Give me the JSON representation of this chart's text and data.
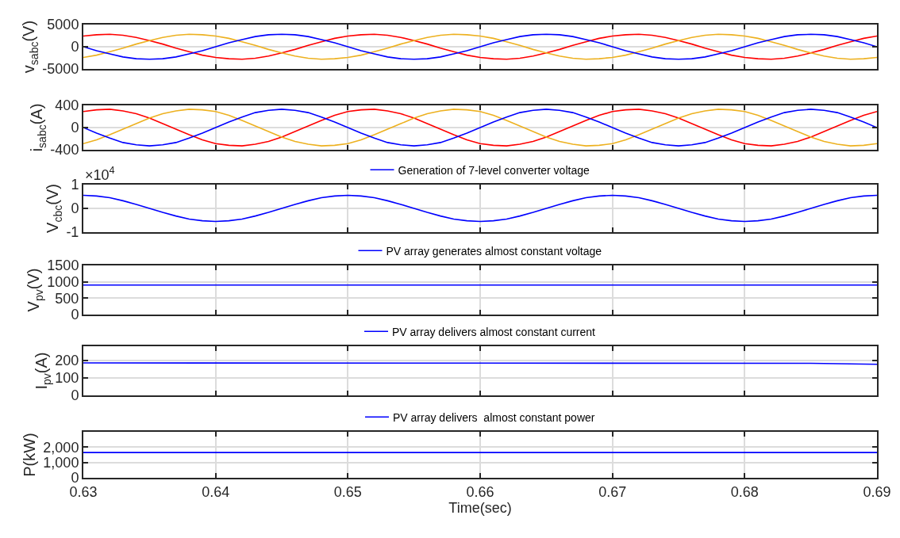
{
  "chart_data": [
    {
      "type": "line",
      "ylabel": "v$_{sabc}$(V)",
      "xlim": [
        0.63,
        0.69
      ],
      "xticks": [
        0.63,
        0.64,
        0.65,
        0.66,
        0.67,
        0.68,
        0.69
      ],
      "ylim": [
        -5000,
        5000
      ],
      "yticks": [
        -5000,
        0,
        5000
      ],
      "grid": true,
      "tick_labels": "y",
      "legend": false,
      "x": [
        0.63,
        0.631,
        0.632,
        0.633,
        0.634,
        0.635,
        0.636,
        0.637,
        0.638,
        0.639,
        0.64,
        0.641,
        0.642,
        0.643,
        0.644,
        0.645,
        0.646,
        0.647,
        0.648,
        0.649,
        0.65,
        0.651,
        0.652,
        0.653,
        0.654,
        0.655,
        0.656,
        0.657,
        0.658,
        0.659,
        0.66,
        0.661,
        0.662,
        0.663,
        0.664,
        0.665,
        0.666,
        0.667,
        0.668,
        0.669,
        0.67,
        0.671,
        0.672,
        0.673,
        0.674,
        0.675,
        0.676,
        0.677,
        0.678,
        0.679,
        0.68,
        0.681,
        0.682,
        0.683,
        0.684,
        0.685,
        0.686,
        0.687,
        0.688,
        0.689,
        0.69
      ],
      "series": [
        {
          "color": "#ff0000",
          "values": [
            2400,
            2700,
            2800,
            2600,
            2100,
            1400,
            600,
            -300,
            -1100,
            -1900,
            -2400,
            -2700,
            -2800,
            -2600,
            -2100,
            -1400,
            -600,
            300,
            1100,
            1900,
            2400,
            2700,
            2800,
            2600,
            2100,
            1400,
            600,
            -300,
            -1100,
            -1900,
            -2400,
            -2700,
            -2800,
            -2600,
            -2100,
            -1400,
            -600,
            300,
            1100,
            1900,
            2400,
            2700,
            2800,
            2600,
            2100,
            1400,
            600,
            -300,
            -1100,
            -1900,
            -2400,
            -2700,
            -2800,
            -2600,
            -2100,
            -1400,
            -600,
            300,
            1100,
            1900,
            2400
          ]
        },
        {
          "color": "#edb120",
          "values": [
            -2400,
            -1900,
            -1100,
            -300,
            600,
            1400,
            2100,
            2600,
            2800,
            2700,
            2400,
            1900,
            1100,
            300,
            -600,
            -1400,
            -2100,
            -2600,
            -2800,
            -2700,
            -2400,
            -1900,
            -1100,
            -300,
            600,
            1400,
            2100,
            2600,
            2800,
            2700,
            2400,
            1900,
            1100,
            300,
            -600,
            -1400,
            -2100,
            -2600,
            -2800,
            -2700,
            -2400,
            -1900,
            -1100,
            -300,
            600,
            1400,
            2100,
            2600,
            2800,
            2700,
            2400,
            1900,
            1100,
            300,
            -600,
            -1400,
            -2100,
            -2600,
            -2800,
            -2700,
            -2400
          ]
        },
        {
          "color": "#0000ff",
          "values": [
            0,
            -900,
            -1600,
            -2300,
            -2700,
            -2800,
            -2700,
            -2300,
            -1600,
            -900,
            0,
            900,
            1600,
            2300,
            2700,
            2800,
            2700,
            2300,
            1600,
            900,
            0,
            -900,
            -1600,
            -2300,
            -2700,
            -2800,
            -2700,
            -2300,
            -1600,
            -900,
            0,
            900,
            1600,
            2300,
            2700,
            2800,
            2700,
            2300,
            1600,
            900,
            0,
            -900,
            -1600,
            -2300,
            -2700,
            -2800,
            -2700,
            -2300,
            -1600,
            -900,
            0,
            900,
            1600,
            2300,
            2700,
            2800,
            2700,
            2300,
            1600,
            900,
            0
          ]
        }
      ]
    },
    {
      "type": "line",
      "ylabel": "i$_{sabc}$(A)",
      "xlim": [
        0.63,
        0.69
      ],
      "xticks": [
        0.63,
        0.64,
        0.65,
        0.66,
        0.67,
        0.68,
        0.69
      ],
      "ylim": [
        -400,
        400
      ],
      "yticks": [
        -400,
        0,
        400
      ],
      "grid": true,
      "tick_labels": "y",
      "legend": false,
      "x": [
        0.63,
        0.631,
        0.632,
        0.633,
        0.634,
        0.635,
        0.636,
        0.637,
        0.638,
        0.639,
        0.64,
        0.641,
        0.642,
        0.643,
        0.644,
        0.645,
        0.646,
        0.647,
        0.648,
        0.649,
        0.65,
        0.651,
        0.652,
        0.653,
        0.654,
        0.655,
        0.656,
        0.657,
        0.658,
        0.659,
        0.66,
        0.661,
        0.662,
        0.663,
        0.664,
        0.665,
        0.666,
        0.667,
        0.668,
        0.669,
        0.67,
        0.671,
        0.672,
        0.673,
        0.674,
        0.675,
        0.676,
        0.677,
        0.678,
        0.679,
        0.68,
        0.681,
        0.682,
        0.683,
        0.684,
        0.685,
        0.686,
        0.687,
        0.688,
        0.689,
        0.69
      ],
      "series": [
        {
          "color": "#ff0000",
          "values": [
            290,
            320,
            330,
            300,
            250,
            170,
            70,
            -30,
            -130,
            -220,
            -290,
            -320,
            -330,
            -300,
            -250,
            -170,
            -70,
            30,
            130,
            220,
            290,
            320,
            330,
            300,
            250,
            170,
            70,
            -30,
            -130,
            -220,
            -290,
            -320,
            -330,
            -300,
            -250,
            -170,
            -70,
            30,
            130,
            220,
            290,
            320,
            330,
            300,
            250,
            170,
            70,
            -30,
            -130,
            -220,
            -290,
            -320,
            -330,
            -300,
            -250,
            -170,
            -70,
            30,
            130,
            220,
            290
          ]
        },
        {
          "color": "#edb120",
          "values": [
            -290,
            -220,
            -130,
            -30,
            70,
            170,
            250,
            300,
            330,
            320,
            290,
            220,
            130,
            30,
            -70,
            -170,
            -250,
            -300,
            -330,
            -320,
            -290,
            -220,
            -130,
            -30,
            70,
            170,
            250,
            300,
            330,
            320,
            290,
            220,
            130,
            30,
            -70,
            -170,
            -250,
            -300,
            -330,
            -320,
            -290,
            -220,
            -130,
            -30,
            70,
            170,
            250,
            300,
            330,
            320,
            290,
            220,
            130,
            30,
            -70,
            -170,
            -250,
            -300,
            -330,
            -320,
            -290
          ]
        },
        {
          "color": "#0000ff",
          "values": [
            0,
            -100,
            -190,
            -270,
            -310,
            -330,
            -310,
            -270,
            -190,
            -100,
            0,
            100,
            190,
            270,
            310,
            330,
            310,
            270,
            190,
            100,
            0,
            -100,
            -190,
            -270,
            -310,
            -330,
            -310,
            -270,
            -190,
            -100,
            0,
            100,
            190,
            270,
            310,
            330,
            310,
            270,
            190,
            100,
            0,
            -100,
            -190,
            -270,
            -310,
            -330,
            -310,
            -270,
            -190,
            -100,
            0,
            100,
            190,
            270,
            310,
            330,
            310,
            270,
            190,
            100,
            0
          ]
        }
      ]
    },
    {
      "type": "line",
      "ylabel": "V$_{cbc}$(V)",
      "annotations": [
        "×10$^{4}$"
      ],
      "xlim": [
        0.63,
        0.69
      ],
      "xticks": [
        0.63,
        0.64,
        0.65,
        0.66,
        0.67,
        0.68,
        0.69
      ],
      "ylim": [
        -1,
        1
      ],
      "yticks": [
        -1,
        0,
        1
      ],
      "grid": true,
      "tick_labels": "y",
      "legend": "top",
      "x": [
        0.63,
        0.631,
        0.632,
        0.633,
        0.634,
        0.635,
        0.636,
        0.637,
        0.638,
        0.639,
        0.64,
        0.641,
        0.642,
        0.643,
        0.644,
        0.645,
        0.646,
        0.647,
        0.648,
        0.649,
        0.65,
        0.651,
        0.652,
        0.653,
        0.654,
        0.655,
        0.656,
        0.657,
        0.658,
        0.659,
        0.66,
        0.661,
        0.662,
        0.663,
        0.664,
        0.665,
        0.666,
        0.667,
        0.668,
        0.669,
        0.67,
        0.671,
        0.672,
        0.673,
        0.674,
        0.675,
        0.676,
        0.677,
        0.678,
        0.679,
        0.68,
        0.681,
        0.682,
        0.683,
        0.684,
        0.685,
        0.686,
        0.687,
        0.688,
        0.689,
        0.69
      ],
      "series": [
        {
          "name": "Generation of 7-level converter voltage",
          "color": "#0000ff",
          "values": [
            0.55,
            0.52,
            0.45,
            0.32,
            0.17,
            0,
            -0.17,
            -0.32,
            -0.45,
            -0.52,
            -0.55,
            -0.52,
            -0.45,
            -0.32,
            -0.17,
            0,
            0.17,
            0.32,
            0.45,
            0.52,
            0.55,
            0.52,
            0.45,
            0.32,
            0.17,
            0,
            -0.17,
            -0.32,
            -0.45,
            -0.52,
            -0.55,
            -0.52,
            -0.45,
            -0.32,
            -0.17,
            0,
            0.17,
            0.32,
            0.45,
            0.52,
            0.55,
            0.52,
            0.45,
            0.32,
            0.17,
            0,
            -0.17,
            -0.32,
            -0.45,
            -0.52,
            -0.55,
            -0.52,
            -0.45,
            -0.32,
            -0.17,
            0,
            0.17,
            0.32,
            0.45,
            0.52,
            0.55
          ]
        }
      ]
    },
    {
      "type": "line",
      "ylabel": "V$_{pv}$(V)",
      "xlim": [
        0.63,
        0.69
      ],
      "xticks": [
        0.63,
        0.64,
        0.65,
        0.66,
        0.67,
        0.68,
        0.69
      ],
      "ylim": [
        0,
        1500
      ],
      "yticks": [
        0,
        500,
        1000,
        1500
      ],
      "grid": true,
      "tick_labels": "y",
      "legend": "top",
      "x": [
        0.63,
        0.69
      ],
      "series": [
        {
          "name": "PV array generates almost constant voltage",
          "color": "#0000ff",
          "values": [
            900,
            900
          ]
        }
      ]
    },
    {
      "type": "line",
      "ylabel": "I$_{pv}$(A)",
      "xlim": [
        0.63,
        0.69
      ],
      "xticks": [
        0.63,
        0.64,
        0.65,
        0.66,
        0.67,
        0.68,
        0.69
      ],
      "ylim": [
        0,
        280
      ],
      "yticks": [
        0,
        100,
        200
      ],
      "grid": true,
      "tick_labels": "y",
      "legend": "top",
      "x": [
        0.63,
        0.66,
        0.685,
        0.69
      ],
      "series": [
        {
          "name": "PV array delivers almost constant current",
          "color": "#0000ff",
          "values": [
            185,
            184,
            183,
            177
          ]
        }
      ]
    },
    {
      "type": "line",
      "ylabel": "P(kW)",
      "xlabel": "Time(sec)",
      "xlim": [
        0.63,
        0.69
      ],
      "xticks": [
        0.63,
        0.64,
        0.65,
        0.66,
        0.67,
        0.68,
        0.69
      ],
      "ylim": [
        0,
        3000
      ],
      "yticks": [
        0,
        {
          "value": 1000,
          "label": "1,000"
        },
        {
          "value": 2000,
          "label": "2,000"
        }
      ],
      "grid": true,
      "legend": "top",
      "x": [
        0.63,
        0.69
      ],
      "series": [
        {
          "name": "PV array delivers  almost constant power",
          "color": "#0000ff",
          "values": [
            1650,
            1650
          ]
        }
      ]
    }
  ]
}
